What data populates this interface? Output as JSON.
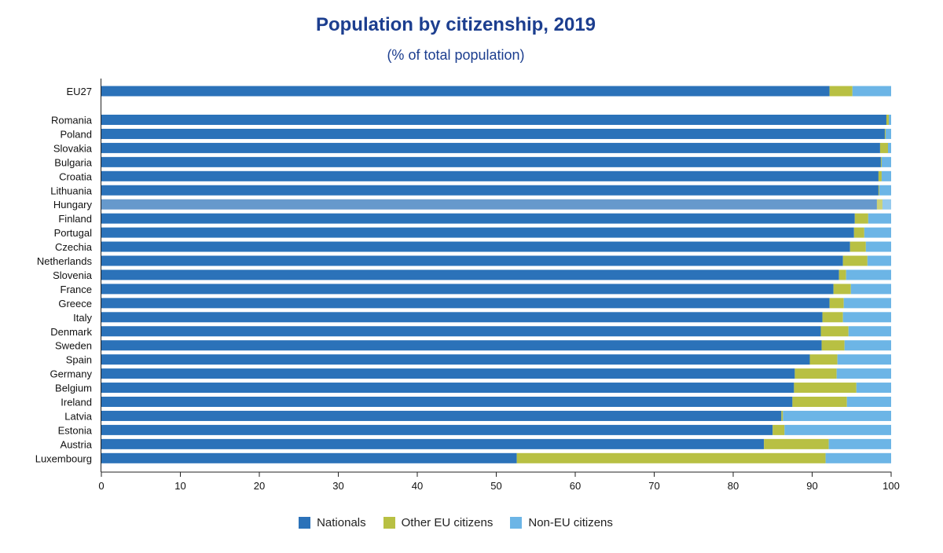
{
  "chart_data": {
    "type": "bar",
    "orientation": "horizontal",
    "stacked": true,
    "title": "Population by citizenship, 2019",
    "subtitle": "(% of total population)",
    "xlabel": "",
    "ylabel": "",
    "xlim": [
      0,
      100
    ],
    "xticks": [
      0,
      10,
      20,
      30,
      40,
      50,
      60,
      70,
      80,
      90,
      100
    ],
    "grid": false,
    "legend_position": "bottom",
    "highlighted_category": "Hungary",
    "categories": [
      "EU27",
      "Romania",
      "Poland",
      "Slovakia",
      "Bulgaria",
      "Croatia",
      "Lithuania",
      "Hungary",
      "Finland",
      "Portugal",
      "Czechia",
      "Netherlands",
      "Slovenia",
      "France",
      "Greece",
      "Italy",
      "Denmark",
      "Sweden",
      "Spain",
      "Germany",
      "Belgium",
      "Ireland",
      "Latvia",
      "Estonia",
      "Austria",
      "Luxembourg"
    ],
    "series": [
      {
        "name": "Nationals",
        "color": "#2b72b9",
        "values": [
          92.2,
          99.4,
          99.2,
          98.6,
          98.7,
          98.4,
          98.4,
          98.2,
          95.4,
          95.3,
          94.8,
          93.9,
          93.4,
          92.7,
          92.2,
          91.3,
          91.1,
          91.2,
          89.7,
          87.8,
          87.7,
          87.5,
          86.1,
          85.0,
          83.9,
          52.6
        ]
      },
      {
        "name": "Other EU citizens",
        "color": "#b8c043",
        "values": [
          2.9,
          0.3,
          0.1,
          1.0,
          0.1,
          0.4,
          0.1,
          0.7,
          1.7,
          1.3,
          2.0,
          3.1,
          0.9,
          2.2,
          1.8,
          2.6,
          3.5,
          2.9,
          3.5,
          5.3,
          7.9,
          6.9,
          0.2,
          1.5,
          8.2,
          39.1
        ]
      },
      {
        "name": "Non-EU citizens",
        "color": "#6cb5e6",
        "values": [
          4.9,
          0.3,
          0.7,
          0.4,
          1.2,
          1.2,
          1.5,
          1.1,
          2.9,
          3.4,
          3.2,
          3.0,
          5.7,
          5.1,
          6.0,
          6.1,
          5.4,
          5.9,
          6.8,
          6.9,
          4.4,
          5.6,
          13.7,
          13.5,
          7.9,
          8.3
        ]
      }
    ]
  },
  "legend": {
    "items": [
      {
        "label": "Nationals",
        "color": "#2b72b9"
      },
      {
        "label": "Other EU citizens",
        "color": "#b8c043"
      },
      {
        "label": "Non-EU citizens",
        "color": "#6cb5e6"
      }
    ]
  }
}
